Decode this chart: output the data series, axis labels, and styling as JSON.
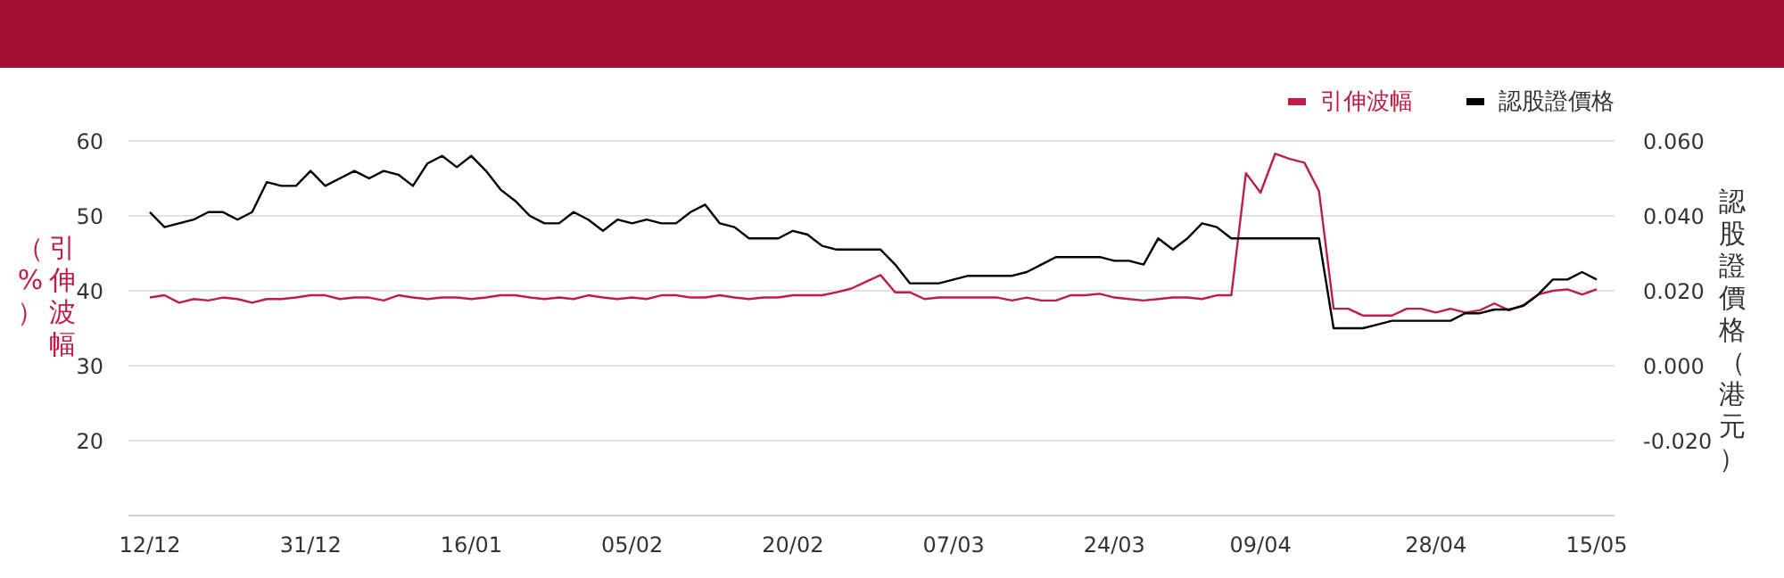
{
  "chart_data": {
    "type": "line",
    "ylabel": "引伸波幅（%）",
    "y2label": "認股證價格（港元）",
    "categories": [
      "12/12",
      null,
      null,
      null,
      null,
      null,
      null,
      null,
      null,
      null,
      null,
      "31/12",
      null,
      null,
      null,
      null,
      null,
      null,
      null,
      null,
      null,
      null,
      "16/01",
      null,
      null,
      null,
      null,
      null,
      null,
      null,
      null,
      null,
      null,
      "05/02",
      null,
      null,
      null,
      null,
      null,
      null,
      null,
      null,
      null,
      null,
      "20/02",
      null,
      null,
      null,
      null,
      null,
      null,
      null,
      null,
      null,
      null,
      "07/03",
      null,
      null,
      null,
      null,
      null,
      null,
      null,
      null,
      null,
      null,
      "24/03",
      null,
      null,
      null,
      null,
      null,
      null,
      null,
      null,
      null,
      "09/04",
      null,
      null,
      null,
      null,
      null,
      null,
      null,
      null,
      null,
      null,
      null,
      "28/04",
      null,
      null,
      null,
      null,
      null,
      null,
      null,
      null,
      null,
      null,
      "15/05"
    ],
    "series": [
      {
        "name": "引伸波幅",
        "color": "#be1e45",
        "values": [
          39.1,
          39.4,
          38.4,
          38.9,
          38.7,
          39.1,
          38.9,
          38.4,
          38.9,
          38.9,
          39.1,
          39.4,
          39.4,
          38.9,
          39.1,
          39.1,
          38.7,
          39.4,
          39.1,
          38.9,
          39.1,
          39.1,
          38.9,
          39.1,
          39.4,
          39.4,
          39.1,
          38.9,
          39.1,
          38.9,
          39.4,
          39.1,
          38.9,
          39.1,
          38.9,
          39.4,
          39.4,
          39.1,
          39.1,
          39.4,
          39.1,
          38.9,
          39.1,
          39.1,
          39.4,
          39.4,
          39.4,
          39.8,
          40.3,
          41.2,
          42.1,
          39.8,
          39.8,
          38.9,
          39.1,
          39.1,
          39.1,
          39.1,
          39.1,
          38.7,
          39.1,
          38.7,
          38.7,
          39.4,
          39.4,
          39.6,
          39.1,
          38.9,
          38.7,
          38.9,
          39.1,
          39.1,
          38.9,
          39.4,
          39.4,
          55.7,
          53.1,
          58.3,
          57.6,
          57.1,
          53.3,
          37.6,
          37.6,
          36.7,
          36.7,
          36.7,
          37.6,
          37.6,
          37.1,
          37.6,
          37.1,
          37.4,
          38.3,
          37.4,
          38.1,
          39.5,
          40.0,
          40.2,
          39.5,
          40.2
        ]
      },
      {
        "name": "認股證價格",
        "color": "#000000",
        "axis": "y2",
        "values": [
          0.041,
          0.037,
          0.038,
          0.039,
          0.041,
          0.041,
          0.039,
          0.041,
          0.049,
          0.048,
          0.048,
          0.052,
          0.048,
          0.05,
          0.052,
          0.05,
          0.052,
          0.051,
          0.048,
          0.054,
          0.056,
          0.053,
          0.056,
          0.052,
          0.047,
          0.044,
          0.04,
          0.038,
          0.038,
          0.041,
          0.039,
          0.036,
          0.039,
          0.038,
          0.039,
          0.038,
          0.038,
          0.041,
          0.043,
          0.038,
          0.037,
          0.034,
          0.034,
          0.034,
          0.036,
          0.035,
          0.032,
          0.031,
          0.031,
          0.031,
          0.031,
          0.027,
          0.022,
          0.022,
          0.022,
          0.023,
          0.024,
          0.024,
          0.024,
          0.024,
          0.025,
          0.027,
          0.029,
          0.029,
          0.029,
          0.029,
          0.028,
          0.028,
          0.027,
          0.034,
          0.031,
          0.034,
          0.038,
          0.037,
          0.034,
          0.034,
          0.034,
          0.034,
          0.034,
          0.034,
          0.034,
          0.01,
          0.01,
          0.01,
          0.011,
          0.012,
          0.012,
          0.012,
          0.012,
          0.012,
          0.014,
          0.014,
          0.015,
          0.015,
          0.016,
          0.019,
          0.023,
          0.023,
          0.025,
          0.023
        ]
      }
    ],
    "ylim": [
      10,
      60
    ],
    "yticks": [
      20,
      30,
      40,
      50,
      60
    ],
    "y2lim": [
      -0.04,
      0.06
    ],
    "y2ticks": [
      {
        "value": -0.02,
        "label": "-0.020"
      },
      {
        "value": 0,
        "label": "0.000"
      },
      {
        "value": 0.02,
        "label": "0.020"
      },
      {
        "value": 0.04,
        "label": "0.040"
      },
      {
        "value": 0.06,
        "label": "0.060"
      }
    ],
    "grid": "y",
    "legend": "top right"
  }
}
